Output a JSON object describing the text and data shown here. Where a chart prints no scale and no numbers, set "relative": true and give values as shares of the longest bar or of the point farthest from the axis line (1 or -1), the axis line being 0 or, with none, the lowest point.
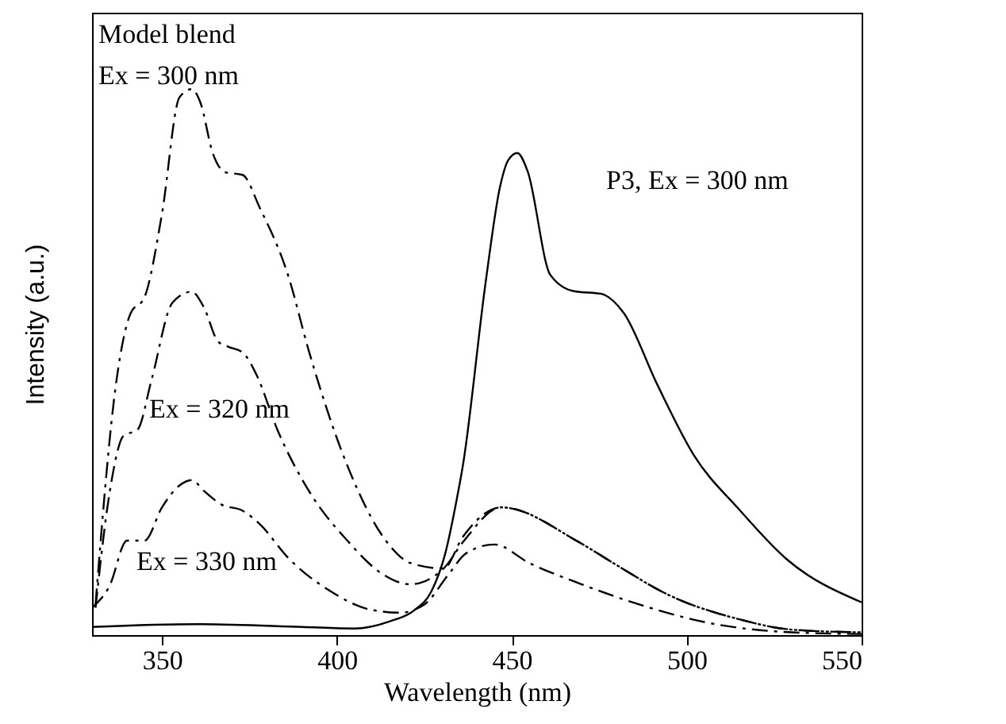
{
  "chart_data": {
    "type": "line",
    "relative": true,
    "xlabel": "Wavelength (nm)",
    "ylabel": "Intensity (a.u.)",
    "xlim": [
      330,
      550
    ],
    "xticks": [
      350,
      400,
      450,
      500,
      550
    ],
    "grid": false,
    "marker": "none",
    "annotations": [
      "Model blend",
      "Ex = 300 nm",
      "Ex = 320 nm",
      "Ex = 330 nm",
      "P3, Ex = 300 nm"
    ],
    "series": [
      {
        "color": "#000000",
        "line_style": "solid",
        "x": [
          330,
          360,
          390,
          405,
          415,
          422,
          427,
          431,
          434,
          436,
          442.6,
          446.6,
          449,
          451.6,
          454.5,
          461,
          467.7,
          475.6,
          482,
          491.5,
          502,
          515,
          528.4,
          550
        ],
        "values": [
          0.015,
          0.02,
          0.015,
          0.012,
          0.025,
          0.045,
          0.08,
          0.15,
          0.24,
          0.31,
          0.65,
          0.82,
          0.87,
          0.883,
          0.85,
          0.66,
          0.63,
          0.625,
          0.59,
          0.46,
          0.33,
          0.23,
          0.14,
          0.06
        ]
      },
      {
        "color": "#000000",
        "line_style": "dashed",
        "x": [
          331,
          337,
          341,
          345,
          350,
          355,
          358.5,
          361,
          364.5,
          368,
          373,
          378,
          386,
          392,
          402.7,
          414,
          421,
          430.5,
          436,
          447,
          469,
          479,
          495,
          515,
          530,
          550
        ],
        "values": [
          0.056,
          0.467,
          0.589,
          0.619,
          0.772,
          0.985,
          1.0,
          0.975,
          0.883,
          0.848,
          0.843,
          0.782,
          0.66,
          0.52,
          0.315,
          0.173,
          0.132,
          0.122,
          0.18,
          0.234,
          0.171,
          0.132,
          0.073,
          0.029,
          0.01,
          0.005
        ]
      },
      {
        "color": "#000000",
        "line_style": "dashed",
        "x": [
          331,
          335,
          339,
          343,
          347,
          353,
          358.5,
          362,
          366,
          369,
          373,
          377,
          383,
          392,
          403,
          413,
          421,
          430.5,
          436,
          447,
          469,
          479,
          495,
          515,
          530,
          550
        ],
        "values": [
          0.05,
          0.26,
          0.365,
          0.376,
          0.467,
          0.609,
          0.629,
          0.6,
          0.538,
          0.528,
          0.518,
          0.477,
          0.376,
          0.264,
          0.173,
          0.112,
          0.093,
          0.122,
          0.17,
          0.234,
          0.171,
          0.132,
          0.073,
          0.029,
          0.01,
          0.005
        ]
      },
      {
        "color": "#000000",
        "line_style": "dashed",
        "x": [
          330,
          335,
          340,
          345,
          350,
          355,
          358.5,
          362,
          367,
          373,
          378,
          386,
          398,
          410,
          418,
          425,
          432,
          437,
          445,
          455,
          470,
          485,
          505,
          530,
          550
        ],
        "values": [
          0.05,
          0.09,
          0.173,
          0.173,
          0.234,
          0.274,
          0.284,
          0.264,
          0.239,
          0.228,
          0.203,
          0.142,
          0.081,
          0.046,
          0.041,
          0.056,
          0.112,
          0.15,
          0.166,
          0.132,
          0.093,
          0.059,
          0.024,
          0.005,
          0.002
        ]
      }
    ]
  }
}
